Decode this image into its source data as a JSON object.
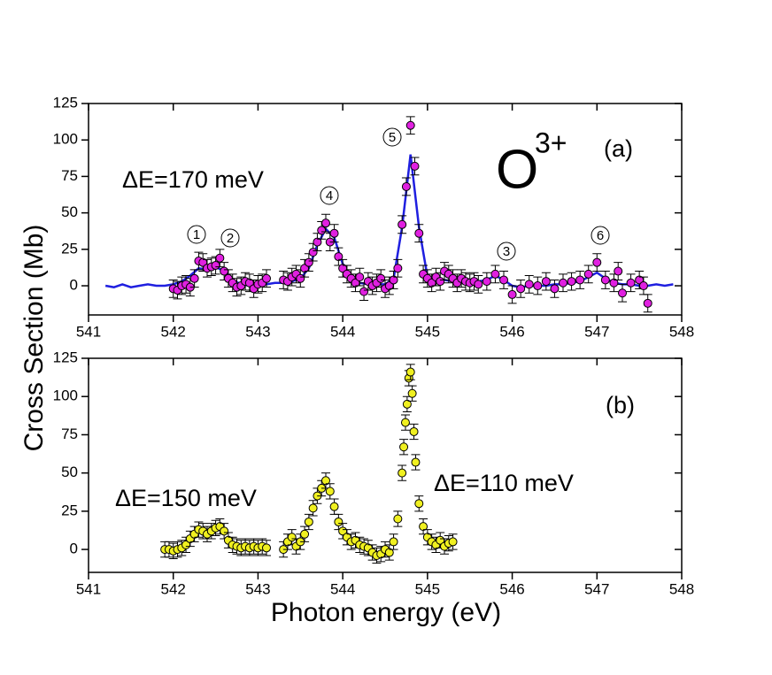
{
  "chart_data": [
    {
      "type": "scatter",
      "ylabel": "Cross Section (Mb)",
      "xlim": [
        541,
        548
      ],
      "xticks": [
        541,
        542,
        543,
        544,
        545,
        546,
        547,
        548
      ],
      "ylim": [
        -20,
        125
      ],
      "yticks": [
        0,
        25,
        50,
        75,
        100,
        125
      ],
      "ion": "O",
      "ion_charge": "3+",
      "panel": "(a)",
      "resolution": "ΔE=170 meV",
      "peaks": [
        "1",
        "2",
        "4",
        "5",
        "3",
        "6"
      ],
      "series": [
        {
          "type": "line",
          "color": "#1f1fe0",
          "x": [
            541.2,
            541.3,
            541.4,
            541.5,
            541.6,
            541.7,
            541.8,
            541.9,
            542.0,
            542.1,
            542.2,
            542.3,
            542.4,
            542.5,
            542.6,
            542.7,
            542.8,
            542.9,
            543.0,
            543.1,
            543.2,
            543.3,
            543.4,
            543.5,
            543.6,
            543.7,
            543.8,
            543.9,
            544.0,
            544.1,
            544.2,
            544.3,
            544.4,
            544.5,
            544.6,
            544.7,
            544.8,
            544.9,
            545.0,
            545.1,
            545.2,
            545.3,
            545.4,
            545.5,
            545.6,
            545.7,
            545.8,
            545.9,
            546.0,
            546.1,
            546.2,
            546.3,
            546.4,
            546.5,
            546.6,
            546.7,
            546.8,
            546.9,
            547.0,
            547.1,
            547.2,
            547.3,
            547.4,
            547.5,
            547.6,
            547.7,
            547.8,
            547.9
          ],
          "values": [
            0,
            -1,
            1,
            -1,
            0,
            1,
            0,
            0,
            1,
            3,
            7,
            12,
            11,
            13,
            10,
            4,
            1,
            0,
            1,
            1,
            2,
            2,
            3,
            5,
            12,
            28,
            39,
            33,
            15,
            5,
            2,
            1,
            1,
            1,
            5,
            40,
            90,
            40,
            6,
            3,
            4,
            3,
            2,
            3,
            3,
            4,
            7,
            4,
            0,
            -1,
            0,
            0,
            0,
            1,
            1,
            2,
            3,
            6,
            9,
            5,
            2,
            1,
            1,
            0,
            0,
            1,
            0,
            1
          ]
        },
        {
          "type": "errorbar",
          "color": "#e020e0",
          "error": 6,
          "x": [
            542.0,
            542.05,
            542.1,
            542.15,
            542.2,
            542.25,
            542.3,
            542.35,
            542.4,
            542.45,
            542.5,
            542.55,
            542.6,
            542.65,
            542.7,
            542.75,
            542.8,
            542.85,
            542.9,
            542.95,
            543.0,
            543.05,
            543.1,
            543.3,
            543.35,
            543.4,
            543.45,
            543.5,
            543.55,
            543.6,
            543.65,
            543.7,
            543.75,
            543.8,
            543.85,
            543.9,
            543.95,
            544.0,
            544.05,
            544.1,
            544.15,
            544.2,
            544.25,
            544.3,
            544.35,
            544.4,
            544.45,
            544.5,
            544.55,
            544.6,
            544.65,
            544.7,
            544.75,
            544.8,
            544.85,
            544.9,
            544.95,
            545.0,
            545.05,
            545.1,
            545.15,
            545.2,
            545.25,
            545.3,
            545.35,
            545.4,
            545.45,
            545.5,
            545.55,
            545.6,
            545.7,
            545.8,
            545.9,
            546.0,
            546.1,
            546.2,
            546.3,
            546.4,
            546.5,
            546.6,
            546.7,
            546.8,
            546.9,
            547.0,
            547.1,
            547.2,
            547.25,
            547.3,
            547.4,
            547.5,
            547.55,
            547.6
          ],
          "values": [
            -2,
            -3,
            0,
            1,
            -1,
            5,
            17,
            16,
            12,
            13,
            14,
            19,
            10,
            5,
            2,
            -1,
            0,
            3,
            2,
            -2,
            1,
            2,
            5,
            4,
            3,
            6,
            8,
            5,
            12,
            16,
            23,
            30,
            38,
            43,
            30,
            36,
            20,
            12,
            8,
            5,
            2,
            6,
            -4,
            3,
            0,
            2,
            5,
            -2,
            0,
            4,
            12,
            42,
            68,
            110,
            82,
            36,
            8,
            5,
            2,
            6,
            3,
            10,
            8,
            5,
            2,
            5,
            3,
            2,
            3,
            1,
            3,
            8,
            4,
            -6,
            -2,
            1,
            0,
            3,
            -2,
            2,
            3,
            4,
            8,
            16,
            4,
            2,
            10,
            -5,
            2,
            4,
            0,
            -12
          ]
        }
      ]
    },
    {
      "type": "scatter",
      "xlabel": "Photon energy (eV)",
      "xlim": [
        541,
        548
      ],
      "xticks": [
        541,
        542,
        543,
        544,
        545,
        546,
        547,
        548
      ],
      "ylim": [
        -15,
        125
      ],
      "yticks": [
        0,
        25,
        50,
        75,
        100,
        125
      ],
      "panel": "(b)",
      "resolution": "ΔE=150 meV",
      "resolution2": "ΔE=110 meV",
      "series": [
        {
          "type": "errorbar",
          "color": "#f0f020",
          "error": 5,
          "x": [
            541.9,
            541.95,
            542.0,
            542.05,
            542.1,
            542.15,
            542.2,
            542.25,
            542.3,
            542.35,
            542.4,
            542.45,
            542.5,
            542.55,
            542.6,
            542.65,
            542.7,
            542.75,
            542.8,
            542.85,
            542.9,
            542.95,
            543.0,
            543.05,
            543.1,
            543.3,
            543.35,
            543.4,
            543.45,
            543.5,
            543.55,
            543.6,
            543.65,
            543.7,
            543.75,
            543.8,
            543.85,
            543.9,
            543.95,
            544.0,
            544.05,
            544.1,
            544.15,
            544.2,
            544.25,
            544.3,
            544.35,
            544.4,
            544.45,
            544.5,
            544.55,
            544.6,
            544.65,
            544.7,
            544.72,
            544.74,
            544.76,
            544.78,
            544.8,
            544.82,
            544.84,
            544.86,
            544.9,
            544.95,
            545.0,
            545.05,
            545.1,
            545.15,
            545.2,
            545.25,
            545.3
          ],
          "values": [
            0,
            0,
            -1,
            0,
            1,
            3,
            7,
            10,
            13,
            12,
            10,
            12,
            14,
            15,
            12,
            6,
            3,
            2,
            1,
            2,
            1,
            2,
            1,
            2,
            1,
            0,
            5,
            8,
            2,
            5,
            10,
            18,
            27,
            35,
            40,
            45,
            38,
            28,
            18,
            12,
            8,
            5,
            6,
            3,
            2,
            1,
            -2,
            -4,
            -3,
            0,
            -2,
            5,
            20,
            50,
            67,
            83,
            95,
            112,
            116,
            102,
            77,
            57,
            30,
            15,
            8,
            5,
            3,
            6,
            2,
            4,
            5
          ]
        }
      ]
    }
  ]
}
